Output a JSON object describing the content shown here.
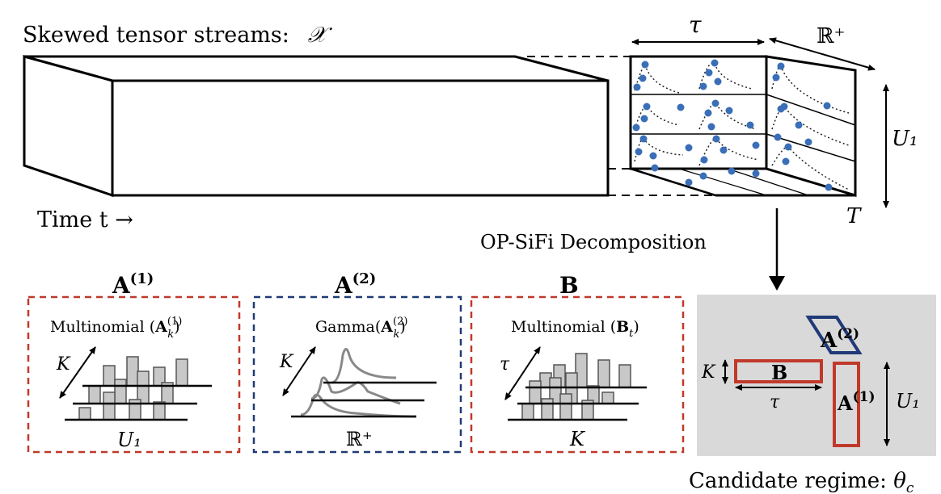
{
  "header": {
    "prefix": "Skewed tensor streams:",
    "symbol": "𝒳"
  },
  "time_axis": {
    "label": "Time t →"
  },
  "cube": {
    "tau": "τ",
    "rplus": "ℝ⁺",
    "u1": "U₁",
    "T": "T"
  },
  "decomposition": {
    "label": "OP-SiFi Decomposition"
  },
  "factors": [
    {
      "title": "A(1)",
      "dist": "Multinomial (A(1)k)",
      "bottom": "U₁",
      "side": "K",
      "border": "#c0392b"
    },
    {
      "title": "A(2)",
      "dist": "Gamma(A(2)k)",
      "bottom": "ℝ⁺",
      "side": "K",
      "border": "#1f3a77"
    },
    {
      "title": "B",
      "dist": "Multinomial (Bt)",
      "bottom": "K",
      "side": "τ",
      "border": "#c0392b"
    }
  ],
  "regime": {
    "caption": "Candidate regime: θc",
    "K": "K",
    "B": "B",
    "tau": "τ",
    "A1": "A(1)",
    "A2": "A(2)",
    "U1": "U₁",
    "bg": "#d9d9d9"
  },
  "colors": {
    "red": "#c0392b",
    "navy": "#1f3a77",
    "dot": "#3a6fb7",
    "bar": "#c8c8c8"
  }
}
